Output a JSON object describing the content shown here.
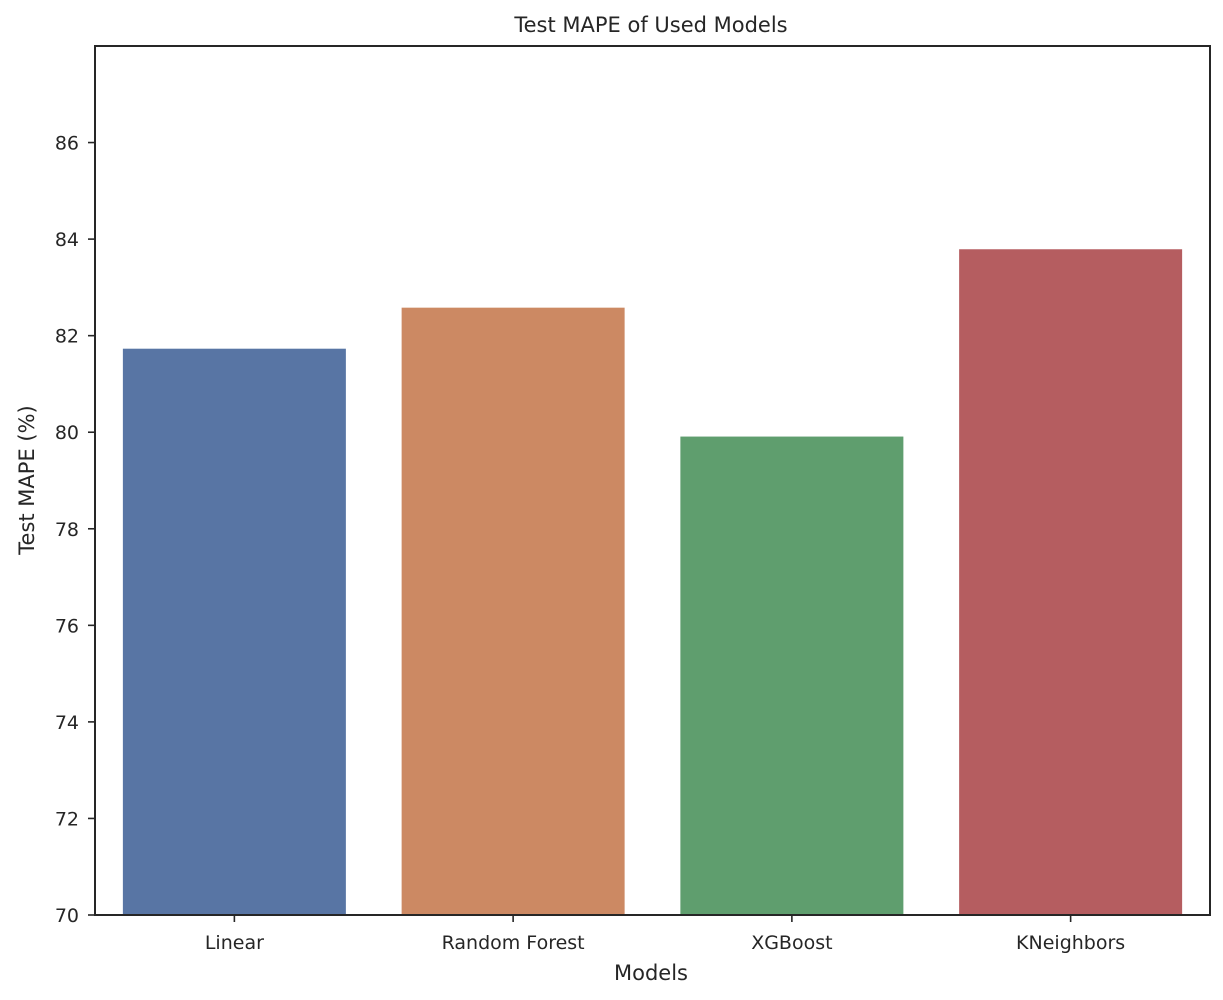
{
  "chart_data": {
    "type": "bar",
    "title": "Test MAPE of Used Models",
    "xlabel": "Models",
    "ylabel": "Test MAPE (%)",
    "categories": [
      "Linear",
      "Random Forest",
      "XGBoost",
      "KNeighbors"
    ],
    "values": [
      81.73,
      82.58,
      79.91,
      83.79
    ],
    "ylim": [
      70,
      88
    ],
    "yticks": [
      70,
      72,
      74,
      76,
      78,
      80,
      82,
      84,
      86
    ],
    "colors": [
      "#5875a4",
      "#cc8963",
      "#5f9e6e",
      "#b55d60"
    ],
    "grid": false,
    "legend": "none"
  }
}
